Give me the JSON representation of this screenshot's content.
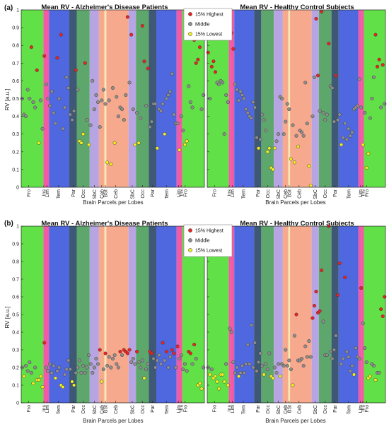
{
  "figure": {
    "colors": {
      "Fro": "#62e048",
      "Ins": "#f25aa6",
      "Lim": "#f25aa6",
      "Tem": "#4f68e0",
      "Par": "#3e5876",
      "Occ": "#5ea76c",
      "SbC": "#b7a4e2",
      "Ceb": "#f7a98d",
      "BSt": "#f6e9b4",
      "highest": "#ee2222",
      "middle": "#8e8e8e",
      "lowest": "#f2ee22"
    },
    "lobe_segments": [
      {
        "lobe": "Fro",
        "start": 0,
        "end": 12
      },
      {
        "lobe": "Ins",
        "start": 12,
        "end": 13
      },
      {
        "lobe": "Lim",
        "start": 13,
        "end": 15
      },
      {
        "lobe": "Tem",
        "start": 15,
        "end": 26
      },
      {
        "lobe": "Par",
        "start": 26,
        "end": 30
      },
      {
        "lobe": "Occ",
        "start": 30,
        "end": 37
      },
      {
        "lobe": "SbC",
        "start": 37,
        "end": 42
      },
      {
        "lobe": "Ceb",
        "start": 42,
        "end": 45
      },
      {
        "lobe": "BSt",
        "start": 45,
        "end": 46
      },
      {
        "lobe": "Ceb",
        "start": 46,
        "end": 58
      },
      {
        "lobe": "SbC",
        "start": 58,
        "end": 62
      },
      {
        "lobe": "Occ",
        "start": 62,
        "end": 69
      },
      {
        "lobe": "Par",
        "start": 69,
        "end": 73
      },
      {
        "lobe": "Tem",
        "start": 73,
        "end": 84
      },
      {
        "lobe": "Lim",
        "start": 84,
        "end": 86
      },
      {
        "lobe": "Ins",
        "start": 86,
        "end": 87
      },
      {
        "lobe": "Fro",
        "start": 87,
        "end": 99
      }
    ],
    "lobe_ticks": [
      {
        "label": "Fro",
        "x": 4
      },
      {
        "label": "Ins",
        "x": 12.2
      },
      {
        "label": "Lim",
        "x": 14
      },
      {
        "label": "Tem",
        "x": 20
      },
      {
        "label": "Par",
        "x": 28
      },
      {
        "label": "Occ",
        "x": 33.5
      },
      {
        "label": "SbC",
        "x": 39.5
      },
      {
        "label": "Ceb",
        "x": 43.5
      },
      {
        "label": "BSt",
        "x": 45.5
      },
      {
        "label": "Ceb",
        "x": 51
      },
      {
        "label": "SbC",
        "x": 60
      },
      {
        "label": "Occ",
        "x": 65.5
      },
      {
        "label": "Par",
        "x": 71
      },
      {
        "label": "Tem",
        "x": 78.5
      },
      {
        "label": "Lim",
        "x": 85
      },
      {
        "label": "Ins",
        "x": 86.4
      },
      {
        "label": "Fro",
        "x": 88.6
      }
    ],
    "legend_labels": [
      "15% Highest",
      "Middle",
      "15% Lowest"
    ],
    "panel_labels": [
      "(a)",
      "(b)"
    ]
  },
  "chart_data": [
    {
      "type": "scatter",
      "panel": "(a)",
      "title": "Mean RV - Alzheimer's Disease Patients",
      "xlabel": "Brain Parcels per Lobes",
      "ylabel": "RV [a.u.]",
      "ylim": [
        0,
        1
      ],
      "yticks": [
        "0",
        "0.1",
        "0.2",
        "0.3",
        "0.4",
        "0.5",
        "0.6",
        "0.7",
        "0.8",
        "0.9",
        "1"
      ],
      "legend": true,
      "legend_position": "top-right",
      "y": [
        0.5,
        0.41,
        0.4,
        0.55,
        0.5,
        0.79,
        0.48,
        0.45,
        0.66,
        0.25,
        0.49,
        0.33,
        0.74,
        0.58,
        0.5,
        0.46,
        0.54,
        0.42,
        0.36,
        0.73,
        0.5,
        0.86,
        0.33,
        0.45,
        0.62,
        0.56,
        0.41,
        0.38,
        0.43,
        0.66,
        0.55,
        0.26,
        0.25,
        0.3,
        0.7,
        0.38,
        0.24,
        0.35,
        0.6,
        0.44,
        0.52,
        0.48,
        0.34,
        0.49,
        0.55,
        0.47,
        0.14,
        0.49,
        0.13,
        0.56,
        0.25,
        0.51,
        0.4,
        0.45,
        0.44,
        0.38,
        0.52,
        0.96,
        0.59,
        0.86,
        0.44,
        0.24,
        0.42,
        0.25,
        0.39,
        0.91,
        0.71,
        0.46,
        0.67,
        0.34,
        0.37,
        0.47,
        0.47,
        0.22,
        0.44,
        0.43,
        0.47,
        0.3,
        0.5,
        0.52,
        0.54,
        0.64,
        0.41,
        0.36,
        0.36,
        0.21,
        0.4,
        0.32,
        0.24,
        0.26,
        0.57,
        0.48,
        0.45,
        0.83,
        0.7,
        0.72,
        0.79,
        0.44,
        0.52
      ]
    },
    {
      "type": "scatter",
      "panel": "(a)",
      "title": "Mean RV - Healthy Control Subjects",
      "xlabel": "Brain Parcels per Lobes",
      "ylabel": "",
      "ylim": [
        0,
        1
      ],
      "legend": false,
      "y": [
        0.76,
        0.5,
        0.68,
        0.71,
        0.65,
        0.59,
        0.58,
        0.6,
        0.59,
        0.3,
        0.52,
        0.48,
        0.84,
        0.87,
        0.78,
        0.58,
        0.55,
        0.49,
        0.54,
        0.52,
        0.5,
        0.44,
        0.42,
        0.4,
        0.39,
        0.48,
        0.45,
        0.28,
        0.22,
        0.27,
        0.41,
        0.38,
        0.32,
        0.2,
        0.22,
        0.11,
        0.1,
        0.22,
        0.26,
        0.3,
        0.51,
        0.5,
        0.3,
        0.37,
        0.47,
        0.44,
        0.16,
        0.35,
        0.14,
        0.29,
        0.23,
        0.32,
        0.31,
        0.29,
        0.59,
        0.36,
        0.12,
        0.01,
        0.4,
        0.62,
        0.95,
        0.63,
        0.43,
        0.99,
        0.42,
        0.38,
        0.41,
        0.81,
        0.57,
        0.56,
        0.37,
        0.63,
        0.38,
        0.41,
        0.24,
        0.28,
        0.36,
        0.27,
        0.33,
        0.29,
        0.31,
        0.44,
        0.45,
        0.46,
        0.61,
        0.45,
        0.24,
        0.42,
        0.11,
        0.19,
        0.39,
        0.5,
        0.62,
        0.86,
        0.68,
        0.72,
        0.45,
        0.69,
        0.47
      ]
    },
    {
      "type": "scatter",
      "panel": "(b)",
      "title": "Mean RV - Alzheimer's Disease Patients",
      "xlabel": "Brain Parcels per Lobes",
      "ylabel": "RV [a.u.]",
      "ylim": [
        0,
        1
      ],
      "yticks": [
        "0",
        "0.1",
        "0.2",
        "0.3",
        "0.4",
        "0.5",
        "0.6",
        "0.7",
        "0.8",
        "0.9",
        "1"
      ],
      "legend": true,
      "legend_position": "top-right",
      "y": [
        0.2,
        0.15,
        0.21,
        0.18,
        0.23,
        0.17,
        0.11,
        0.2,
        0.13,
        0.13,
        0.15,
        0.09,
        0.34,
        0.2,
        0.18,
        0.22,
        0.17,
        0.21,
        0.14,
        0.18,
        0.2,
        0.1,
        0.09,
        0.16,
        0.19,
        0.24,
        0.19,
        0.12,
        0.1,
        0.17,
        0.2,
        0.24,
        0.17,
        0.21,
        0.17,
        0.2,
        0.27,
        0.22,
        0.17,
        0.2,
        0.25,
        0.22,
        0.3,
        0.12,
        0.19,
        0.28,
        0.21,
        0.26,
        0.2,
        0.25,
        0.27,
        0.22,
        0.2,
        0.29,
        0.27,
        0.3,
        0.29,
        0.28,
        0.3,
        0.23,
        0.25,
        0.22,
        0.29,
        0.23,
        0.2,
        0.24,
        0.14,
        0.19,
        0.22,
        0.29,
        0.28,
        0.25,
        0.2,
        0.24,
        0.27,
        0.22,
        0.34,
        0.24,
        0.29,
        0.2,
        0.26,
        0.3,
        0.28,
        0.2,
        0.32,
        0.25,
        0.27,
        0.19,
        0.22,
        0.18,
        0.29,
        0.28,
        0.22,
        0.33,
        0.25,
        0.1,
        0.11,
        0.08,
        0.2
      ]
    },
    {
      "type": "scatter",
      "panel": "(b)",
      "title": "Mean RV - Healthy Control Subjects",
      "xlabel": "Brain Parcels per Lobes",
      "ylabel": "",
      "ylim": [
        0,
        1
      ],
      "legend": false,
      "y": [
        0.2,
        0.16,
        0.19,
        0.14,
        0.15,
        0.12,
        0.08,
        0.16,
        0.16,
        0.12,
        0.22,
        0.1,
        0.42,
        0.4,
        0.23,
        0.17,
        0.2,
        0.15,
        0.17,
        0.21,
        0.17,
        0.22,
        0.33,
        0.22,
        0.44,
        0.2,
        0.34,
        0.18,
        0.23,
        0.28,
        0.21,
        0.16,
        0.22,
        0.19,
        0.28,
        0.15,
        0.14,
        0.2,
        0.17,
        0.22,
        0.15,
        0.22,
        0.21,
        0.3,
        0.21,
        0.24,
        0.19,
        0.1,
        0.38,
        0.5,
        0.24,
        0.24,
        0.25,
        0.21,
        0.32,
        0.26,
        0.35,
        0.26,
        0.48,
        0.55,
        0.63,
        0.51,
        0.52,
        0.75,
        0.46,
        0.27,
        0.27,
        1.0,
        0.29,
        0.25,
        0.3,
        0.38,
        0.61,
        0.79,
        0.22,
        0.25,
        0.71,
        0.29,
        0.26,
        0.18,
        0.21,
        0.16,
        0.31,
        0.26,
        0.25,
        0.65,
        0.45,
        0.31,
        0.23,
        0.14,
        0.15,
        0.22,
        0.21,
        0.13,
        0.17,
        0.17,
        0.53,
        0.49,
        0.6
      ]
    }
  ]
}
